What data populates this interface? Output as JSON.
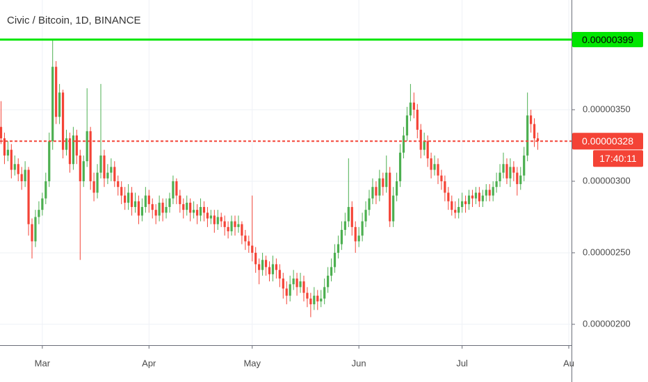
{
  "chart_data": {
    "type": "candlestick",
    "title": "Civic / Bitcoin, 1D, BINANCE",
    "up_color": "#4caf50",
    "down_color": "#f44336",
    "open": [
      3.38e-06,
      3.3e-06,
      3.18e-06,
      3.22e-06,
      3.08e-06,
      3.12e-06,
      3.05e-06,
      3e-06,
      3.08e-06,
      2.7e-06,
      2.58e-06,
      2.75e-06,
      2.8e-06,
      2.88e-06,
      3e-06,
      3.28e-06,
      3.8e-06,
      3.45e-06,
      3.62e-06,
      3.22e-06,
      3.3e-06,
      3.12e-06,
      3.32e-06,
      3.18e-06,
      3e-06,
      3.14e-06,
      3.35e-06,
      3e-06,
      2.92e-06,
      3.06e-06,
      3.18e-06,
      3.02e-06,
      3.06e-06,
      3.1e-06,
      3e-06,
      2.96e-06,
      2.9e-06,
      2.85e-06,
      2.92e-06,
      2.82e-06,
      2.86e-06,
      2.76e-06,
      2.82e-06,
      2.9e-06,
      2.84e-06,
      2.8e-06,
      2.76e-06,
      2.85e-06,
      2.78e-06,
      2.82e-06,
      2.88e-06,
      3e-06,
      2.9e-06,
      2.84e-06,
      2.8e-06,
      2.85e-06,
      2.78e-06,
      2.8e-06,
      2.76e-06,
      2.82e-06,
      2.78e-06,
      2.74e-06,
      2.76e-06,
      2.7e-06,
      2.75e-06,
      2.72e-06,
      2.68e-06,
      2.65e-06,
      2.72e-06,
      2.68e-06,
      2.7e-06,
      2.62e-06,
      2.58e-06,
      2.55e-06,
      2.5e-06,
      2.42e-06,
      2.38e-06,
      2.45e-06,
      2.4e-06,
      2.35e-06,
      2.42e-06,
      2.38e-06,
      2.32e-06,
      2.25e-06,
      2.2e-06,
      2.28e-06,
      2.32e-06,
      2.26e-06,
      2.3e-06,
      2.22e-06,
      2.18e-06,
      2.14e-06,
      2.2e-06,
      2.16e-06,
      2.18e-06,
      2.26e-06,
      2.34e-06,
      2.4e-06,
      2.5e-06,
      2.56e-06,
      2.66e-06,
      2.72e-06,
      2.82e-06,
      2.68e-06,
      2.58e-06,
      2.62e-06,
      2.72e-06,
      2.8e-06,
      2.88e-06,
      2.96e-06,
      2.9e-06,
      3.02e-06,
      2.96e-06,
      3.06e-06,
      2.72e-06,
      2.9e-06,
      3e-06,
      3.2e-06,
      3.32e-06,
      3.46e-06,
      3.55e-06,
      3.5e-06,
      3.36e-06,
      3.22e-06,
      3.28e-06,
      3.16e-06,
      3.08e-06,
      3.12e-06,
      3.04e-06,
      3e-06,
      2.92e-06,
      2.86e-06,
      2.8e-06,
      2.78e-06,
      2.82e-06,
      2.86e-06,
      2.84e-06,
      2.9e-06,
      2.88e-06,
      2.92e-06,
      2.86e-06,
      2.9e-06,
      2.94e-06,
      2.9e-06,
      2.96e-06,
      3e-06,
      3.06e-06,
      3.12e-06,
      3.02e-06,
      3.1e-06,
      3.06e-06,
      2.98e-06,
      3.04e-06,
      3.18e-06,
      3.46e-06,
      3.4e-06,
      3.3e-06
    ],
    "high": [
      3.56e-06,
      3.34e-06,
      3.28e-06,
      3.26e-06,
      3.18e-06,
      3.16e-06,
      3.1e-06,
      3.14e-06,
      3.1e-06,
      2.74e-06,
      2.8e-06,
      2.86e-06,
      2.92e-06,
      3.06e-06,
      3.34e-06,
      3.99e-06,
      3.84e-06,
      3.68e-06,
      3.64e-06,
      3.36e-06,
      3.34e-06,
      3.38e-06,
      3.36e-06,
      3.22e-06,
      3.18e-06,
      3.65e-06,
      3.38e-06,
      3.06e-06,
      3.12e-06,
      3.68e-06,
      3.22e-06,
      3.12e-06,
      3.16e-06,
      3.14e-06,
      3.04e-06,
      3e-06,
      2.96e-06,
      2.98e-06,
      2.96e-06,
      2.92e-06,
      2.9e-06,
      2.88e-06,
      2.96e-06,
      2.94e-06,
      2.88e-06,
      2.84e-06,
      2.9e-06,
      2.88e-06,
      2.88e-06,
      2.92e-06,
      3.04e-06,
      3.02e-06,
      2.94e-06,
      2.88e-06,
      2.9e-06,
      2.88e-06,
      2.86e-06,
      2.84e-06,
      2.88e-06,
      2.86e-06,
      2.82e-06,
      2.8e-06,
      2.8e-06,
      2.8e-06,
      2.78e-06,
      2.76e-06,
      2.72e-06,
      2.76e-06,
      2.76e-06,
      2.76e-06,
      2.72e-06,
      2.66e-06,
      2.62e-06,
      2.9e-06,
      2.54e-06,
      2.46e-06,
      2.5e-06,
      2.48e-06,
      2.44e-06,
      2.48e-06,
      2.46e-06,
      2.42e-06,
      2.36e-06,
      2.3e-06,
      2.34e-06,
      2.38e-06,
      2.36e-06,
      2.36e-06,
      2.34e-06,
      2.26e-06,
      2.22e-06,
      2.26e-06,
      2.24e-06,
      2.24e-06,
      2.32e-06,
      2.4e-06,
      2.46e-06,
      2.56e-06,
      2.62e-06,
      2.72e-06,
      2.78e-06,
      3.16e-06,
      2.86e-06,
      2.72e-06,
      2.68e-06,
      2.78e-06,
      2.86e-06,
      2.94e-06,
      3.02e-06,
      3e-06,
      3.08e-06,
      3.06e-06,
      3.18e-06,
      3.1e-06,
      2.96e-06,
      3.06e-06,
      3.26e-06,
      3.38e-06,
      3.52e-06,
      3.68e-06,
      3.62e-06,
      3.54e-06,
      3.4e-06,
      3.34e-06,
      3.32e-06,
      3.2e-06,
      3.18e-06,
      3.16e-06,
      3.08e-06,
      3.04e-06,
      2.96e-06,
      2.9e-06,
      2.86e-06,
      2.88e-06,
      2.92e-06,
      2.9e-06,
      2.94e-06,
      2.94e-06,
      2.96e-06,
      2.96e-06,
      2.94e-06,
      2.98e-06,
      2.98e-06,
      3e-06,
      3.06e-06,
      3.12e-06,
      3.2e-06,
      3.16e-06,
      3.16e-06,
      3.14e-06,
      3.1e-06,
      3.1e-06,
      3.24e-06,
      3.62e-06,
      3.5e-06,
      3.44e-06,
      3.34e-06
    ],
    "low": [
      3.26e-06,
      3.12e-06,
      3.14e-06,
      3.02e-06,
      3.04e-06,
      3e-06,
      2.94e-06,
      2.96e-06,
      2.62e-06,
      2.46e-06,
      2.54e-06,
      2.7e-06,
      2.76e-06,
      2.84e-06,
      2.96e-06,
      3.22e-06,
      3.4e-06,
      3.4e-06,
      3.16e-06,
      3.18e-06,
      3.06e-06,
      3.08e-06,
      3.12e-06,
      2.45e-06,
      2.96e-06,
      3.1e-06,
      2.94e-06,
      2.86e-06,
      2.88e-06,
      3.02e-06,
      2.96e-06,
      2.98e-06,
      3e-06,
      2.96e-06,
      2.9e-06,
      2.84e-06,
      2.8e-06,
      2.8e-06,
      2.76e-06,
      2.78e-06,
      2.7e-06,
      2.72e-06,
      2.78e-06,
      2.78e-06,
      2.74e-06,
      2.7e-06,
      2.72e-06,
      2.72e-06,
      2.74e-06,
      2.78e-06,
      2.84e-06,
      2.84e-06,
      2.78e-06,
      2.74e-06,
      2.76e-06,
      2.72e-06,
      2.74e-06,
      2.7e-06,
      2.72e-06,
      2.72e-06,
      2.68e-06,
      2.7e-06,
      2.64e-06,
      2.66e-06,
      2.68e-06,
      2.62e-06,
      2.6e-06,
      2.62e-06,
      2.62e-06,
      2.64e-06,
      2.56e-06,
      2.52e-06,
      2.5e-06,
      2.44e-06,
      2.36e-06,
      2.28e-06,
      2.34e-06,
      2.34e-06,
      2.3e-06,
      2.3e-06,
      2.32e-06,
      2.26e-06,
      2.18e-06,
      2.14e-06,
      2.16e-06,
      2.24e-06,
      2.2e-06,
      2.22e-06,
      2.16e-06,
      2.12e-06,
      2.05e-06,
      2.1e-06,
      2.1e-06,
      2.12e-06,
      2.14e-06,
      2.22e-06,
      2.3e-06,
      2.36e-06,
      2.46e-06,
      2.52e-06,
      2.62e-06,
      2.68e-06,
      2.62e-06,
      2.5e-06,
      2.54e-06,
      2.58e-06,
      2.68e-06,
      2.76e-06,
      2.84e-06,
      2.84e-06,
      2.86e-06,
      2.9e-06,
      2.92e-06,
      2.68e-06,
      2.68e-06,
      2.86e-06,
      2.96e-06,
      3.16e-06,
      3.28e-06,
      3.42e-06,
      3.44e-06,
      3.3e-06,
      3.16e-06,
      3.18e-06,
      3.1e-06,
      3.02e-06,
      3.04e-06,
      2.98e-06,
      2.94e-06,
      2.86e-06,
      2.8e-06,
      2.76e-06,
      2.74e-06,
      2.74e-06,
      2.78e-06,
      2.78e-06,
      2.8e-06,
      2.82e-06,
      2.84e-06,
      2.82e-06,
      2.82e-06,
      2.86e-06,
      2.86e-06,
      2.86e-06,
      2.92e-06,
      2.96e-06,
      3.02e-06,
      2.98e-06,
      2.96e-06,
      3e-06,
      2.9e-06,
      2.94e-06,
      3e-06,
      3.14e-06,
      3.34e-06,
      3.24e-06,
      3.22e-06
    ],
    "close": [
      3.3e-06,
      3.18e-06,
      3.22e-06,
      3.08e-06,
      3.12e-06,
      3.05e-06,
      3e-06,
      3.08e-06,
      2.7e-06,
      2.58e-06,
      2.75e-06,
      2.8e-06,
      2.88e-06,
      3e-06,
      3.28e-06,
      3.8e-06,
      3.45e-06,
      3.62e-06,
      3.22e-06,
      3.3e-06,
      3.12e-06,
      3.32e-06,
      3.18e-06,
      3e-06,
      3.14e-06,
      3.35e-06,
      3e-06,
      2.92e-06,
      3.06e-06,
      3.18e-06,
      3.02e-06,
      3.06e-06,
      3.1e-06,
      3e-06,
      2.96e-06,
      2.9e-06,
      2.85e-06,
      2.92e-06,
      2.82e-06,
      2.86e-06,
      2.76e-06,
      2.82e-06,
      2.9e-06,
      2.84e-06,
      2.8e-06,
      2.76e-06,
      2.85e-06,
      2.78e-06,
      2.82e-06,
      2.88e-06,
      3e-06,
      2.9e-06,
      2.84e-06,
      2.8e-06,
      2.85e-06,
      2.78e-06,
      2.8e-06,
      2.76e-06,
      2.82e-06,
      2.78e-06,
      2.74e-06,
      2.76e-06,
      2.7e-06,
      2.75e-06,
      2.72e-06,
      2.68e-06,
      2.65e-06,
      2.72e-06,
      2.68e-06,
      2.7e-06,
      2.62e-06,
      2.58e-06,
      2.55e-06,
      2.5e-06,
      2.42e-06,
      2.38e-06,
      2.45e-06,
      2.4e-06,
      2.35e-06,
      2.42e-06,
      2.38e-06,
      2.32e-06,
      2.25e-06,
      2.2e-06,
      2.28e-06,
      2.32e-06,
      2.26e-06,
      2.3e-06,
      2.22e-06,
      2.18e-06,
      2.14e-06,
      2.2e-06,
      2.16e-06,
      2.18e-06,
      2.26e-06,
      2.34e-06,
      2.4e-06,
      2.5e-06,
      2.56e-06,
      2.66e-06,
      2.72e-06,
      2.82e-06,
      2.68e-06,
      2.58e-06,
      2.62e-06,
      2.72e-06,
      2.8e-06,
      2.88e-06,
      2.96e-06,
      2.9e-06,
      3.02e-06,
      2.96e-06,
      3.06e-06,
      2.72e-06,
      2.9e-06,
      3e-06,
      3.2e-06,
      3.32e-06,
      3.46e-06,
      3.55e-06,
      3.5e-06,
      3.36e-06,
      3.22e-06,
      3.28e-06,
      3.16e-06,
      3.08e-06,
      3.12e-06,
      3.04e-06,
      3e-06,
      2.92e-06,
      2.86e-06,
      2.8e-06,
      2.78e-06,
      2.82e-06,
      2.86e-06,
      2.84e-06,
      2.9e-06,
      2.88e-06,
      2.92e-06,
      2.86e-06,
      2.9e-06,
      2.94e-06,
      2.9e-06,
      2.96e-06,
      3e-06,
      3.06e-06,
      3.12e-06,
      3.02e-06,
      3.1e-06,
      3.06e-06,
      2.98e-06,
      3.04e-06,
      3.18e-06,
      3.46e-06,
      3.4e-06,
      3.3e-06,
      3.28e-06
    ],
    "xlim": [
      -0.3,
      165.8
    ],
    "xticks": [
      {
        "value": 12,
        "label": "Mar"
      },
      {
        "value": 43,
        "label": "Apr"
      },
      {
        "value": 73,
        "label": "May"
      },
      {
        "value": 104,
        "label": "Jun"
      },
      {
        "value": 134,
        "label": "Jul"
      },
      {
        "value": 165,
        "label": "Au"
      }
    ],
    "ylim": [
      1.854e-06,
      4.267e-06
    ],
    "yticks": [
      {
        "value": 2e-06,
        "label": "0.00000200"
      },
      {
        "value": 2.5e-06,
        "label": "0.00000250"
      },
      {
        "value": 3e-06,
        "label": "0.00000300"
      },
      {
        "value": 3.5e-06,
        "label": "0.00000350"
      }
    ],
    "grid": true,
    "level_line": {
      "value": 3.99e-06,
      "label": "0.00000399",
      "color": "#00e600"
    },
    "last_price": {
      "value": 3.28e-06,
      "label": "0.00000328",
      "countdown": "17:40:11",
      "color": "#f44336"
    }
  }
}
